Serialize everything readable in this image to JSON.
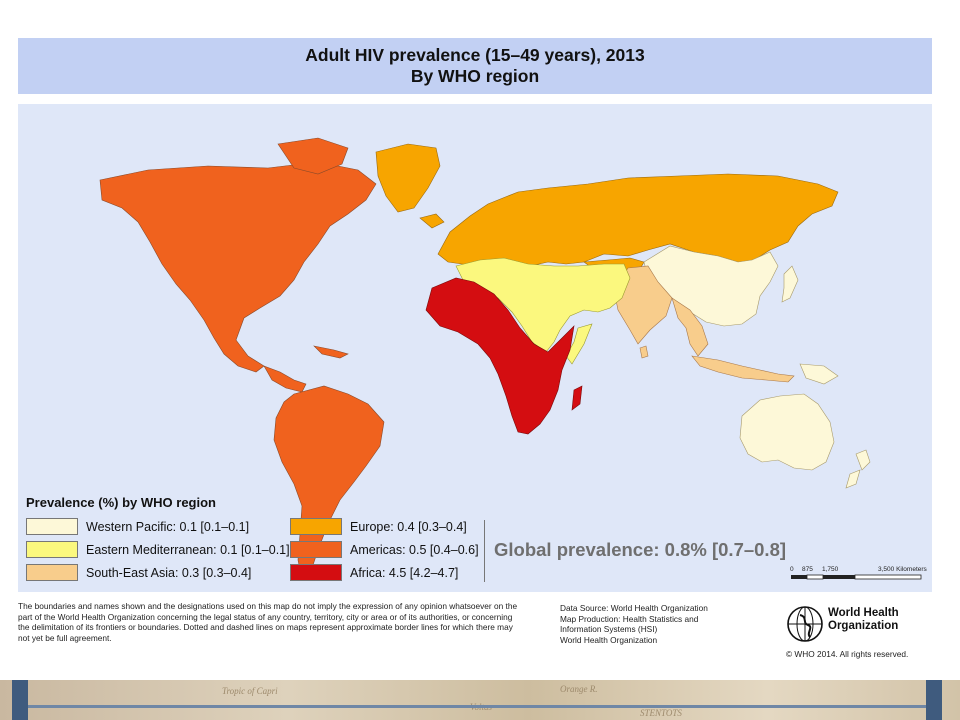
{
  "title": {
    "line1": "Adult HIV prevalence (15–49 years), 2013",
    "line2": "By WHO region"
  },
  "legend": {
    "title": "Prevalence (%) by WHO region",
    "items": [
      {
        "label": "Western Pacific: 0.1 [0.1–0.1]",
        "color": "#fdf8d8"
      },
      {
        "label": "Eastern Mediterranean: 0.1 [0.1–0.1]",
        "color": "#fbf87e"
      },
      {
        "label": "South-East Asia: 0.3 [0.3–0.4]",
        "color": "#f8cd8c"
      },
      {
        "label": "Europe: 0.4 [0.3–0.4]",
        "color": "#f7a500"
      },
      {
        "label": "Americas: 0.5 [0.4–0.6]",
        "color": "#f0621e"
      },
      {
        "label": "Africa: 4.5 [4.2–4.7]",
        "color": "#d40d11"
      }
    ]
  },
  "global_prevalence": "Global prevalence: 0.8% [0.7–0.8]",
  "scale_bar": {
    "labels": [
      "0",
      "875",
      "1,750",
      "3,500 Kilometers"
    ]
  },
  "disclaimer": "The boundaries and names shown and the designations used on this map do not imply the expression of any opinion whatsoever on the part of the World Health Organization concerning the legal status of any country, territory, city or area or of its authorities, or concerning the delimitation of its frontiers or boundaries. Dotted and dashed lines on maps represent approximate border lines for which there may not yet be full agreement.",
  "credits": {
    "line1": "Data Source: World Health Organization",
    "line2": "Map Production: Health Statistics and",
    "line3": "Information Systems (HSI)",
    "line4": "World Health Organization"
  },
  "who": {
    "name_line1": "World Health",
    "name_line2": "Organization",
    "copyright": "© WHO 2014. All rights reserved."
  },
  "background_text": [
    "Tropic of Capri",
    "Orange R.",
    "Voltas",
    "STENTOTS"
  ],
  "colors": {
    "title_band": "#c2d0f3",
    "map_water": "#dfe7f8",
    "global_text": "#6f6f6f",
    "accent_bar": "#3f5b7e"
  }
}
